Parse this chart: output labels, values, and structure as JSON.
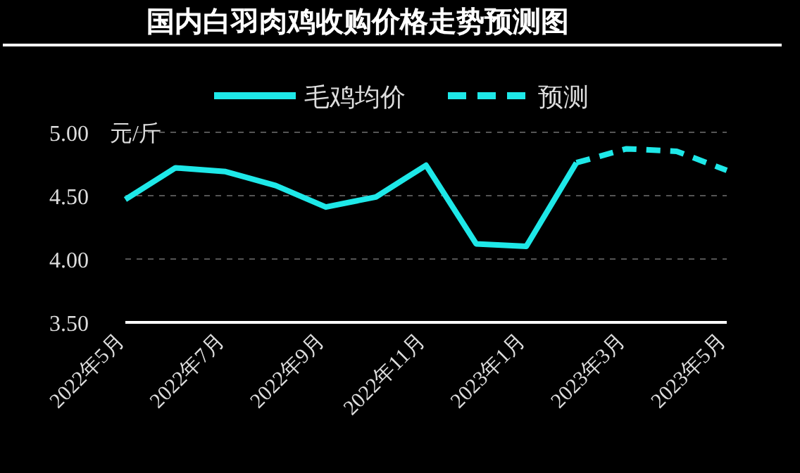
{
  "chart_data": {
    "type": "line",
    "title": "国内白羽肉鸡收购价格走势预测图",
    "categories": [
      "2022年5月",
      null,
      "2022年7月",
      null,
      "2022年9月",
      null,
      "2022年11月",
      null,
      "2023年1月",
      null,
      "2023年3月",
      null,
      "2023年5月"
    ],
    "series": [
      {
        "name": "毛鸡均价",
        "color": "#1ee8e8",
        "line_style": "solid",
        "values": [
          4.47,
          4.72,
          4.69,
          4.58,
          4.41,
          4.49,
          4.74,
          4.12,
          4.1,
          4.76,
          null,
          null,
          null
        ]
      },
      {
        "name": "预测",
        "color": "#1ee8e8",
        "line_style": "dashed",
        "values": [
          null,
          null,
          null,
          null,
          null,
          null,
          null,
          null,
          null,
          4.76,
          4.87,
          4.85,
          4.7
        ]
      }
    ],
    "ylim": [
      3.5,
      5
    ],
    "yticks": [
      {
        "value": 3.5,
        "label": "3.50"
      },
      {
        "value": 4,
        "label": "4.00"
      },
      {
        "value": 4.5,
        "label": "4.50"
      },
      {
        "value": 5,
        "label": "5.00"
      }
    ],
    "grid": "y",
    "legend": "top",
    "annotations": [
      "元/斤"
    ]
  }
}
